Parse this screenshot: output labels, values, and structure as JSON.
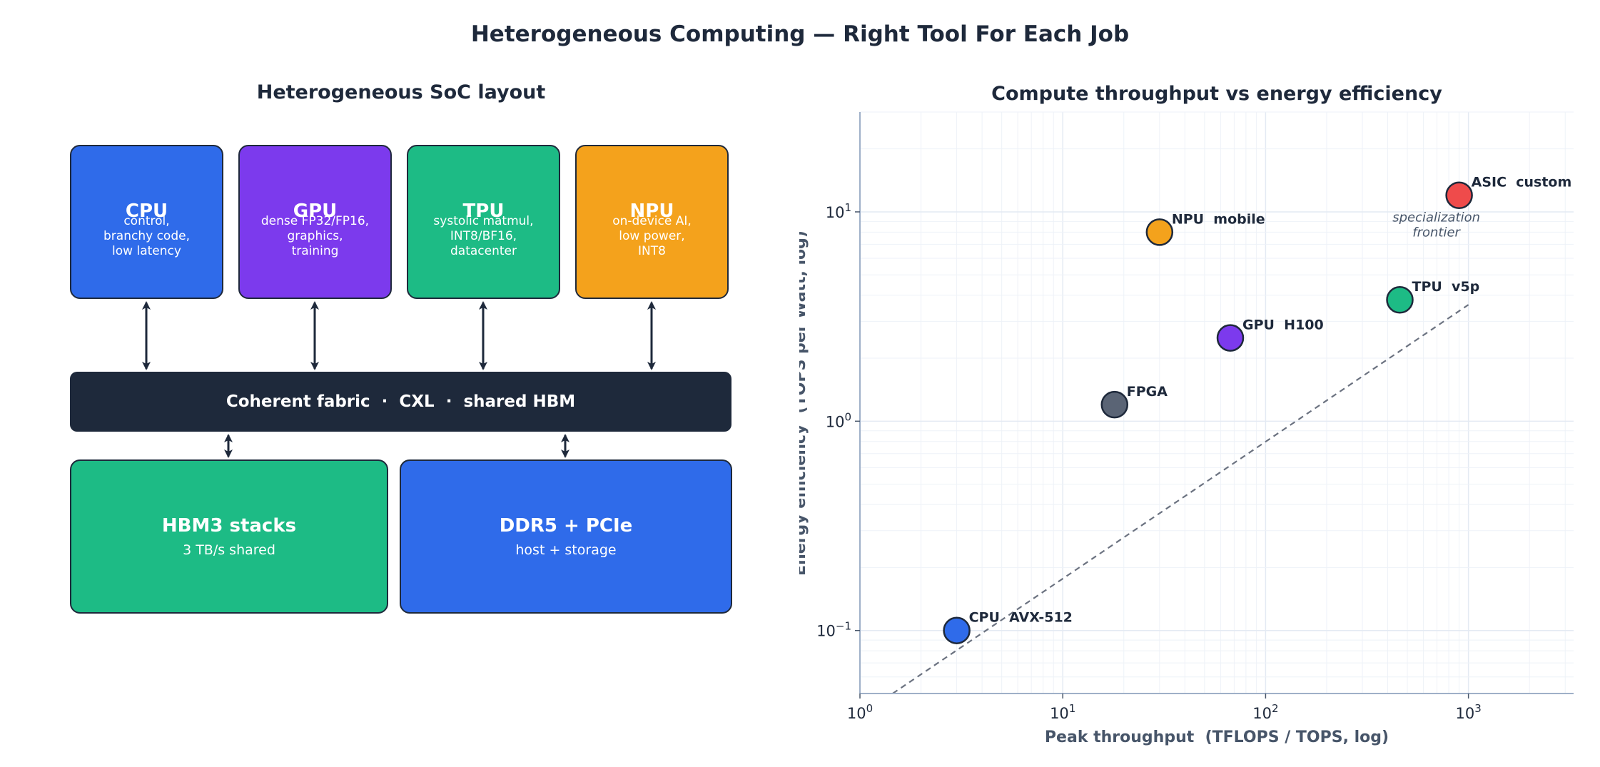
{
  "figure": {
    "title": "Heterogeneous Computing — Right Tool For Each Job"
  },
  "left_panel": {
    "title": "Heterogeneous SoC layout",
    "chips": [
      {
        "name": "CPU",
        "sub": "control,\nbranchy code,\nlow latency",
        "color": "#2f6bea"
      },
      {
        "name": "GPU",
        "sub": "dense FP32/FP16,\ngraphics,\ntraining",
        "color": "#7c3aed"
      },
      {
        "name": "TPU",
        "sub": "systolic matmul,\nINT8/BF16,\ndatacenter",
        "color": "#1dbb85"
      },
      {
        "name": "NPU",
        "sub": "on-device AI,\nlow power,\nINT8",
        "color": "#f4a21c"
      }
    ],
    "fabric": {
      "label": "Coherent fabric  ·  CXL  ·  shared HBM",
      "color": "#1e293b"
    },
    "memory": [
      {
        "name": "HBM3 stacks",
        "sub": "3 TB/s shared",
        "color": "#1dbb85"
      },
      {
        "name": "DDR5 + PCIe",
        "sub": "host + storage",
        "color": "#2f6bea"
      }
    ]
  },
  "chart_data": {
    "type": "scatter",
    "title": "Compute throughput vs energy efficiency",
    "xlabel": "Peak throughput  (TFLOPS / TOPS, log)",
    "ylabel": "Energy efficiency  (TOPS per Watt, log)",
    "x_scale": "log",
    "y_scale": "log",
    "xlim": [
      1,
      3300
    ],
    "ylim": [
      0.05,
      30
    ],
    "x_ticks": [
      1,
      10,
      100,
      1000
    ],
    "y_ticks": [
      0.1,
      1,
      10
    ],
    "grid": true,
    "points": [
      {
        "label": "CPU  AVX-512",
        "x": 3,
        "y": 0.1,
        "color": "#2f6bea"
      },
      {
        "label": "FPGA",
        "x": 18,
        "y": 1.2,
        "color": "#5a6475"
      },
      {
        "label": "GPU  H100",
        "x": 67,
        "y": 2.5,
        "color": "#7c3aed"
      },
      {
        "label": "NPU  mobile",
        "x": 30,
        "y": 8,
        "color": "#f4a21c"
      },
      {
        "label": "TPU  v5p",
        "x": 459,
        "y": 3.8,
        "color": "#1dbb85"
      },
      {
        "label": "ASIC  custom",
        "x": 900,
        "y": 12,
        "color": "#ef4b4b"
      }
    ],
    "frontier_line": {
      "x": [
        1.45,
        1000
      ],
      "y": [
        0.05,
        3.6
      ]
    },
    "annotation": "specialization\nfrontier"
  }
}
